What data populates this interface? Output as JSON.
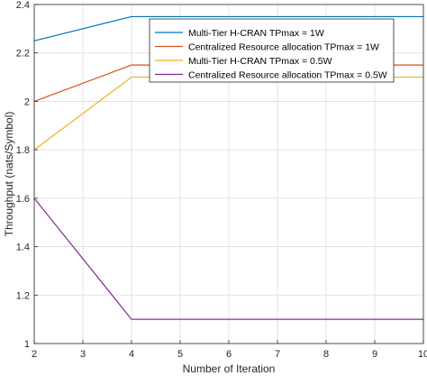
{
  "chart_data": {
    "type": "line",
    "xlabel": "Number of Iteration",
    "ylabel": "Throughput (nats/Symbol)",
    "xlim": [
      2,
      10
    ],
    "ylim": [
      1,
      2.4
    ],
    "x_ticks": [
      "2",
      "3",
      "4",
      "5",
      "6",
      "7",
      "8",
      "9",
      "10"
    ],
    "y_ticks": [
      "1",
      "1.2",
      "1.4",
      "1.6",
      "1.8",
      "2",
      "2.2",
      "2.4"
    ],
    "grid": true,
    "legend_position": "top-right",
    "x": [
      2,
      4,
      10
    ],
    "series": [
      {
        "name": "Multi-Tier H-CRAN TPmax = 1W",
        "color": "#0072BD",
        "values": [
          2.25,
          2.35,
          2.35
        ]
      },
      {
        "name": "Centralized Resource allocation TPmax = 1W",
        "color": "#D95319",
        "values": [
          2.0,
          2.15,
          2.15
        ]
      },
      {
        "name": "Multi-Tier H-CRAN TPmax = 0.5W",
        "color": "#EDB120",
        "values": [
          1.8,
          2.1,
          2.1
        ]
      },
      {
        "name": "Centralized Resource allocation TPmax = 0.5W",
        "color": "#7E2F8E",
        "values": [
          1.6,
          1.1,
          1.1
        ]
      }
    ]
  }
}
